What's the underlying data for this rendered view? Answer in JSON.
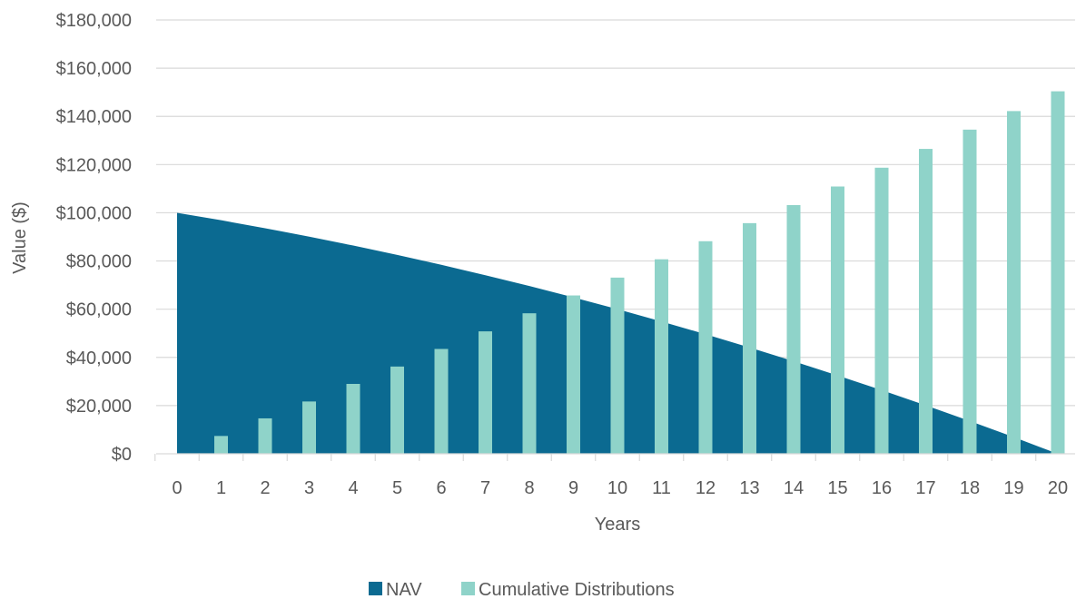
{
  "chart_data": {
    "type": "area+bar",
    "xlabel": "Years",
    "ylabel": "Value ($)",
    "ylim": [
      0,
      180000
    ],
    "yticks": [
      "$0",
      "$20,000",
      "$40,000",
      "$60,000",
      "$80,000",
      "$100,000",
      "$120,000",
      "$140,000",
      "$160,000",
      "$180,000"
    ],
    "categories": [
      "0",
      "1",
      "2",
      "3",
      "4",
      "5",
      "6",
      "7",
      "8",
      "9",
      "10",
      "11",
      "12",
      "13",
      "14",
      "15",
      "16",
      "17",
      "18",
      "19",
      "20"
    ],
    "grid": true,
    "legend_position": "bottom",
    "series": [
      {
        "name": "NAV",
        "type": "area",
        "color": "#0b6a91",
        "values": [
          100000,
          96900,
          93600,
          90100,
          86400,
          82500,
          78400,
          74100,
          69600,
          64900,
          60000,
          54900,
          49600,
          44100,
          38400,
          32500,
          26400,
          20100,
          13600,
          6900,
          0
        ]
      },
      {
        "name": "Cumulative Distributions",
        "type": "bar",
        "color": "#8fd3c9",
        "values": [
          0,
          7400,
          14700,
          21700,
          29000,
          36200,
          43500,
          50800,
          58300,
          65700,
          73100,
          80700,
          88200,
          95700,
          103200,
          110900,
          118700,
          126500,
          134500,
          142200,
          150400
        ]
      }
    ]
  },
  "legend": {
    "items": [
      {
        "label": "NAV",
        "color": "#0b6a91"
      },
      {
        "label": "Cumulative Distributions",
        "color": "#8fd3c9"
      }
    ]
  }
}
